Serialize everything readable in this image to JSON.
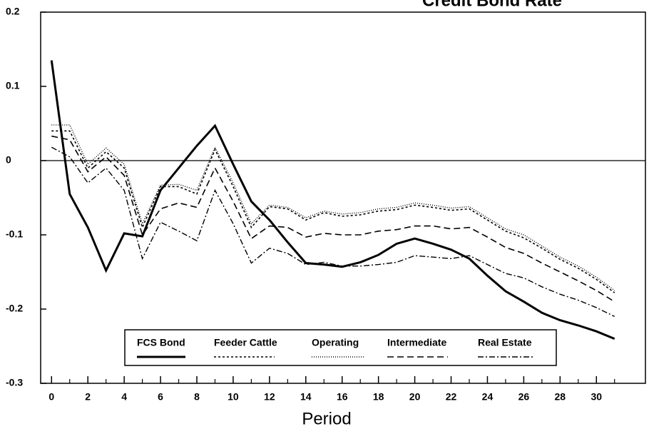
{
  "chart_data": {
    "type": "line",
    "title": "Credit Bond Rate",
    "x_label": "Period",
    "x": [
      0,
      1,
      2,
      3,
      4,
      5,
      6,
      7,
      8,
      9,
      10,
      11,
      12,
      13,
      14,
      15,
      16,
      17,
      18,
      19,
      20,
      21,
      22,
      23,
      24,
      25,
      26,
      27,
      28,
      29,
      30,
      31
    ],
    "xlim": [
      -0.6,
      32.7
    ],
    "xticks": [
      0,
      2,
      4,
      6,
      8,
      10,
      12,
      14,
      16,
      18,
      20,
      22,
      24,
      26,
      28,
      30
    ],
    "ylim": [
      -0.3,
      0.2
    ],
    "yticks": [
      -0.3,
      -0.2,
      -0.1,
      0,
      0.1,
      0.2
    ],
    "series": [
      {
        "name": "FCS Bond",
        "color": "#000",
        "width": 3,
        "dash": "none",
        "values": [
          0.135,
          -0.045,
          -0.09,
          -0.148,
          -0.098,
          -0.102,
          -0.04,
          -0.01,
          0.02,
          0.047,
          -0.005,
          -0.055,
          -0.08,
          -0.11,
          -0.138,
          -0.14,
          -0.143,
          -0.137,
          -0.127,
          -0.112,
          -0.105,
          -0.112,
          -0.12,
          -0.132,
          -0.155,
          -0.176,
          -0.19,
          -0.205,
          -0.215,
          -0.222,
          -0.23,
          -0.24
        ]
      },
      {
        "name": "Feeder Cattle",
        "color": "#000",
        "width": 1.6,
        "dash": "3,3",
        "values": [
          0.04,
          0.04,
          -0.01,
          0.012,
          -0.01,
          -0.09,
          -0.035,
          -0.035,
          -0.045,
          0.015,
          -0.035,
          -0.09,
          -0.062,
          -0.065,
          -0.08,
          -0.07,
          -0.075,
          -0.073,
          -0.068,
          -0.066,
          -0.06,
          -0.063,
          -0.067,
          -0.065,
          -0.08,
          -0.095,
          -0.104,
          -0.118,
          -0.133,
          -0.145,
          -0.16,
          -0.178
        ]
      },
      {
        "name": "Operating",
        "color": "#000",
        "width": 1.4,
        "dash": "1,2",
        "values": [
          0.048,
          0.048,
          -0.005,
          0.017,
          -0.005,
          -0.085,
          -0.033,
          -0.032,
          -0.04,
          0.018,
          -0.03,
          -0.085,
          -0.06,
          -0.063,
          -0.077,
          -0.068,
          -0.072,
          -0.07,
          -0.065,
          -0.063,
          -0.057,
          -0.06,
          -0.064,
          -0.062,
          -0.077,
          -0.092,
          -0.1,
          -0.115,
          -0.13,
          -0.142,
          -0.157,
          -0.175
        ]
      },
      {
        "name": "Intermediate",
        "color": "#000",
        "width": 1.6,
        "dash": "9,5",
        "values": [
          0.033,
          0.028,
          -0.015,
          0.005,
          -0.02,
          -0.1,
          -0.065,
          -0.057,
          -0.063,
          -0.01,
          -0.055,
          -0.105,
          -0.088,
          -0.09,
          -0.103,
          -0.098,
          -0.1,
          -0.1,
          -0.095,
          -0.093,
          -0.088,
          -0.088,
          -0.092,
          -0.09,
          -0.103,
          -0.117,
          -0.125,
          -0.138,
          -0.15,
          -0.162,
          -0.175,
          -0.19
        ]
      },
      {
        "name": "Real Estate",
        "color": "#000",
        "width": 1.4,
        "dash": "8,3,2,3",
        "values": [
          0.018,
          0.005,
          -0.03,
          -0.01,
          -0.04,
          -0.132,
          -0.083,
          -0.095,
          -0.108,
          -0.04,
          -0.085,
          -0.138,
          -0.118,
          -0.125,
          -0.14,
          -0.137,
          -0.142,
          -0.142,
          -0.14,
          -0.137,
          -0.128,
          -0.13,
          -0.132,
          -0.128,
          -0.14,
          -0.152,
          -0.158,
          -0.17,
          -0.18,
          -0.188,
          -0.198,
          -0.21
        ]
      }
    ]
  }
}
